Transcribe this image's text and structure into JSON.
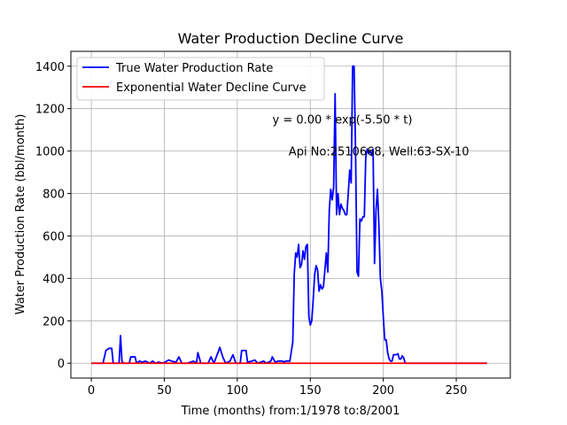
{
  "chart_data": {
    "type": "line",
    "title": "Water Production Decline Curve",
    "xlabel": "Time (months) from:1/1978 to:8/2001",
    "ylabel": "Water Production Rate (bbl/month)",
    "xlim": [
      -14,
      287
    ],
    "ylim": [
      -70,
      1470
    ],
    "xticks": [
      0,
      50,
      100,
      150,
      200,
      250
    ],
    "yticks": [
      0,
      200,
      400,
      600,
      800,
      1000,
      1200,
      1400
    ],
    "grid": true,
    "legend_position": "top-left",
    "annotations": [
      {
        "text": "y = 0.00 * exp(-5.50 * t)",
        "x": 172,
        "y": 1150
      },
      {
        "text": "Api No:2510668, Well:63-SX-10",
        "x": 197,
        "y": 1000
      }
    ],
    "series": [
      {
        "name": "True Water Production Rate",
        "color": "#0000ff",
        "points": [
          [
            0,
            0
          ],
          [
            8,
            0
          ],
          [
            10,
            60
          ],
          [
            12,
            70
          ],
          [
            14,
            70
          ],
          [
            15,
            0
          ],
          [
            19,
            0
          ],
          [
            20,
            130
          ],
          [
            21,
            10
          ],
          [
            22,
            0
          ],
          [
            26,
            0
          ],
          [
            27,
            30
          ],
          [
            30,
            30
          ],
          [
            31,
            0
          ],
          [
            33,
            10
          ],
          [
            35,
            5
          ],
          [
            37,
            10
          ],
          [
            40,
            0
          ],
          [
            42,
            10
          ],
          [
            44,
            0
          ],
          [
            46,
            5
          ],
          [
            49,
            0
          ],
          [
            53,
            15
          ],
          [
            55,
            10
          ],
          [
            58,
            5
          ],
          [
            60,
            30
          ],
          [
            62,
            0
          ],
          [
            66,
            0
          ],
          [
            68,
            5
          ],
          [
            70,
            10
          ],
          [
            72,
            0
          ],
          [
            73,
            50
          ],
          [
            75,
            0
          ],
          [
            80,
            0
          ],
          [
            82,
            30
          ],
          [
            84,
            0
          ],
          [
            87,
            55
          ],
          [
            88,
            75
          ],
          [
            90,
            30
          ],
          [
            92,
            0
          ],
          [
            95,
            10
          ],
          [
            97,
            40
          ],
          [
            99,
            0
          ],
          [
            102,
            0
          ],
          [
            103,
            60
          ],
          [
            106,
            60
          ],
          [
            107,
            5
          ],
          [
            110,
            10
          ],
          [
            112,
            15
          ],
          [
            114,
            0
          ],
          [
            118,
            10
          ],
          [
            120,
            0
          ],
          [
            123,
            10
          ],
          [
            124,
            30
          ],
          [
            126,
            5
          ],
          [
            128,
            10
          ],
          [
            131,
            10
          ],
          [
            132,
            5
          ],
          [
            133,
            10
          ],
          [
            136,
            10
          ],
          [
            138,
            100
          ],
          [
            139,
            420
          ],
          [
            140,
            520
          ],
          [
            141,
            500
          ],
          [
            142,
            560
          ],
          [
            143,
            450
          ],
          [
            144,
            465
          ],
          [
            145,
            530
          ],
          [
            146,
            490
          ],
          [
            147,
            550
          ],
          [
            148,
            560
          ],
          [
            149,
            220
          ],
          [
            150,
            180
          ],
          [
            151,
            200
          ],
          [
            152,
            300
          ],
          [
            153,
            420
          ],
          [
            154,
            460
          ],
          [
            155,
            440
          ],
          [
            156,
            340
          ],
          [
            157,
            370
          ],
          [
            158,
            350
          ],
          [
            159,
            360
          ],
          [
            160,
            440
          ],
          [
            161,
            520
          ],
          [
            162,
            430
          ],
          [
            163,
            720
          ],
          [
            164,
            820
          ],
          [
            165,
            770
          ],
          [
            166,
            830
          ],
          [
            167,
            1270
          ],
          [
            168,
            700
          ],
          [
            169,
            800
          ],
          [
            170,
            700
          ],
          [
            171,
            750
          ],
          [
            172,
            730
          ],
          [
            173,
            720
          ],
          [
            174,
            700
          ],
          [
            175,
            700
          ],
          [
            176,
            800
          ],
          [
            177,
            910
          ],
          [
            178,
            850
          ],
          [
            179,
            1400
          ],
          [
            180,
            1400
          ],
          [
            181,
            1000
          ],
          [
            182,
            430
          ],
          [
            183,
            410
          ],
          [
            184,
            680
          ],
          [
            185,
            670
          ],
          [
            186,
            690
          ],
          [
            187,
            690
          ],
          [
            188,
            970
          ],
          [
            189,
            1010
          ],
          [
            190,
            990
          ],
          [
            191,
            1000
          ],
          [
            192,
            980
          ],
          [
            193,
            1010
          ],
          [
            194,
            470
          ],
          [
            195,
            720
          ],
          [
            196,
            820
          ],
          [
            197,
            650
          ],
          [
            198,
            400
          ],
          [
            199,
            340
          ],
          [
            200,
            220
          ],
          [
            201,
            110
          ],
          [
            202,
            110
          ],
          [
            203,
            50
          ],
          [
            204,
            20
          ],
          [
            205,
            10
          ],
          [
            206,
            10
          ],
          [
            207,
            40
          ],
          [
            208,
            40
          ],
          [
            209,
            40
          ],
          [
            210,
            45
          ],
          [
            211,
            20
          ],
          [
            212,
            20
          ],
          [
            213,
            35
          ],
          [
            214,
            25
          ],
          [
            215,
            0
          ],
          [
            271,
            0
          ]
        ]
      },
      {
        "name": "Exponential Water Decline Curve",
        "color": "#ff0000",
        "points": [
          [
            0,
            0
          ],
          [
            271,
            0
          ]
        ]
      }
    ]
  }
}
